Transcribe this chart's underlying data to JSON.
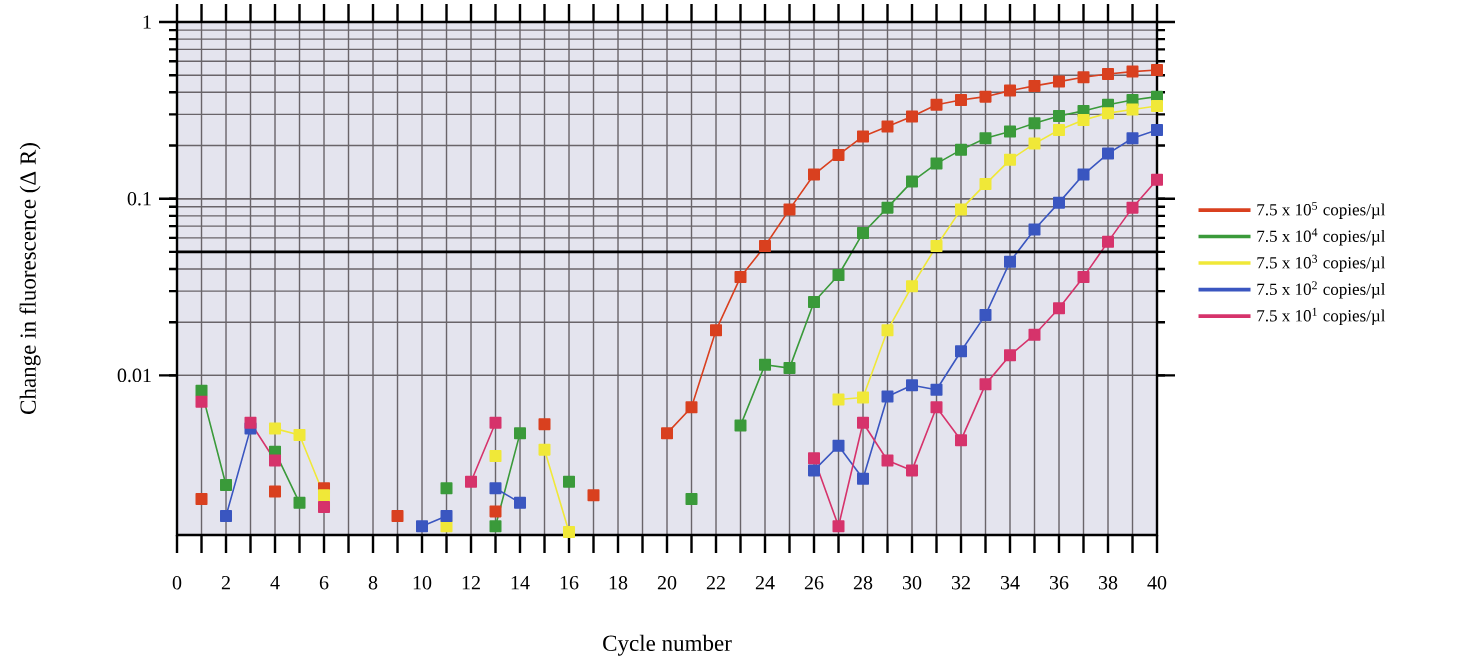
{
  "chart_data": {
    "type": "line",
    "xlabel": "Cycle number",
    "ylabel": "Change in fluorescence (Δ R)",
    "x": [
      1,
      2,
      3,
      4,
      5,
      6,
      7,
      8,
      9,
      10,
      11,
      12,
      13,
      14,
      15,
      16,
      17,
      18,
      19,
      20,
      21,
      22,
      23,
      24,
      25,
      26,
      27,
      28,
      29,
      30,
      31,
      32,
      33,
      34,
      35,
      36,
      37,
      38,
      39,
      40
    ],
    "series": [
      {
        "name": "7.5 x 10$^{5}$ copies/µl",
        "color": "#d9401f",
        "values": [
          0.002,
          null,
          null,
          0.0022,
          null,
          0.0023,
          null,
          null,
          0.0016,
          null,
          null,
          null,
          0.0017,
          null,
          0.0053,
          null,
          0.0021,
          null,
          null,
          0.0047,
          0.0066,
          0.018,
          0.036,
          0.054,
          0.087,
          0.137,
          0.177,
          0.225,
          0.256,
          0.292,
          0.34,
          0.362,
          0.378,
          0.409,
          0.435,
          0.46,
          0.487,
          0.508,
          0.524,
          0.535
        ]
      },
      {
        "name": "7.5 x 10$^{4}$ copies/µl",
        "color": "#3a9a3a",
        "values": [
          0.0082,
          0.0024,
          null,
          0.0037,
          0.0019,
          null,
          null,
          null,
          null,
          null,
          0.0023,
          null,
          0.0014,
          0.0047,
          null,
          0.0025,
          null,
          null,
          null,
          null,
          0.002,
          null,
          0.0052,
          0.0115,
          0.011,
          0.026,
          0.037,
          0.064,
          0.089,
          0.125,
          0.158,
          0.189,
          0.22,
          0.24,
          0.267,
          0.294,
          0.314,
          0.34,
          0.362,
          0.378
        ]
      },
      {
        "name": "7.5 x 10$^{3}$ copies/µl",
        "color": "#f0e838",
        "values": [
          null,
          null,
          null,
          0.005,
          0.0046,
          0.0021,
          null,
          null,
          null,
          null,
          0.0014,
          null,
          0.0035,
          null,
          0.0038,
          0.0013,
          null,
          null,
          null,
          null,
          null,
          null,
          null,
          null,
          null,
          null,
          0.0073,
          0.0075,
          0.018,
          0.032,
          0.054,
          0.087,
          0.121,
          0.166,
          0.205,
          0.245,
          0.279,
          0.305,
          0.32,
          0.335
        ]
      },
      {
        "name": "7.5 x 10$^{2}$ copies/µl",
        "color": "#3a56c0",
        "values": [
          null,
          0.0016,
          0.005,
          null,
          null,
          null,
          null,
          null,
          null,
          0.0014,
          0.0016,
          null,
          0.0023,
          0.0019,
          null,
          null,
          null,
          null,
          null,
          null,
          null,
          null,
          null,
          null,
          null,
          0.0029,
          0.004,
          0.0026,
          0.0076,
          0.0088,
          0.0083,
          0.0137,
          0.022,
          0.044,
          0.067,
          0.095,
          0.137,
          0.18,
          0.22,
          0.245
        ]
      },
      {
        "name": "7.5 x 10$^{1}$ copies/µl",
        "color": "#d6336b",
        "values": [
          0.0071,
          null,
          0.0054,
          0.0033,
          null,
          0.0018,
          null,
          null,
          null,
          null,
          null,
          0.0025,
          0.0054,
          null,
          null,
          null,
          null,
          null,
          null,
          null,
          null,
          null,
          null,
          null,
          null,
          0.0034,
          0.0014,
          0.0054,
          0.0033,
          0.0029,
          0.0066,
          0.0043,
          0.0089,
          0.013,
          0.017,
          0.024,
          0.036,
          0.057,
          0.089,
          0.128
        ]
      }
    ],
    "xlim": [
      0,
      40
    ],
    "ylim": [
      0.00125,
      1
    ],
    "xticks": [
      0,
      {
        "value": 1,
        "label": null
      },
      2,
      {
        "value": 3,
        "label": null
      },
      4,
      {
        "value": 5,
        "label": null
      },
      6,
      {
        "value": 7,
        "label": null
      },
      8,
      {
        "value": 9,
        "label": null
      },
      10,
      {
        "value": 11,
        "label": null
      },
      12,
      {
        "value": 13,
        "label": null
      },
      14,
      {
        "value": 15,
        "label": null
      },
      16,
      {
        "value": 17,
        "label": null
      },
      18,
      {
        "value": 19,
        "label": null
      },
      20,
      {
        "value": 21,
        "label": null
      },
      22,
      {
        "value": 23,
        "label": null
      },
      24,
      {
        "value": 25,
        "label": null
      },
      26,
      {
        "value": 27,
        "label": null
      },
      28,
      {
        "value": 29,
        "label": null
      },
      30,
      {
        "value": 31,
        "label": null
      },
      32,
      {
        "value": 33,
        "label": null
      },
      34,
      {
        "value": 35,
        "label": null
      },
      36,
      {
        "value": 37,
        "label": null
      },
      38,
      {
        "value": 39,
        "label": null
      },
      40
    ],
    "yticks": [
      0.01,
      0.1,
      1
    ],
    "log": "y",
    "grid": true,
    "legend": "right",
    "marker": "square",
    "line_style": "solid",
    "ref_lines": [
      {
        "axis": "y",
        "value": 0.05,
        "color": "#000000"
      }
    ]
  }
}
